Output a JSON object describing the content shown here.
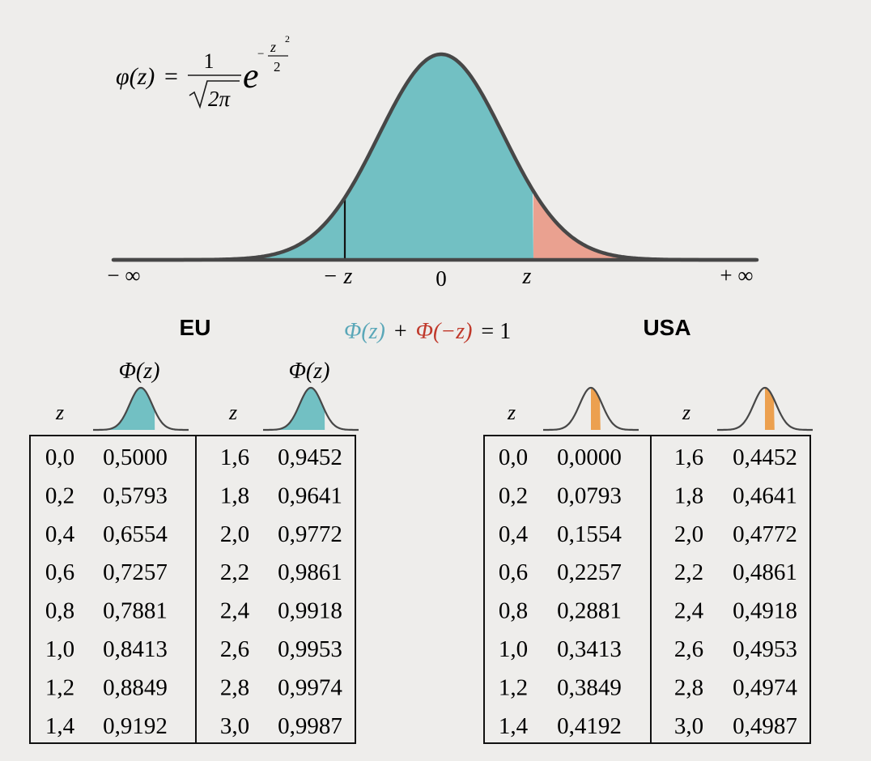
{
  "formula": {
    "lhs": "φ(z)",
    "equals": "=",
    "numerator": "1",
    "sqrt_content": "2π",
    "base": "e",
    "exp_sign": "−",
    "exp_num": "z",
    "exp_pow": "2",
    "exp_den": "2"
  },
  "axis": {
    "neg_inf": "− ∞",
    "neg_z": "− z",
    "zero": "0",
    "pos_z": "z",
    "pos_inf": "+ ∞"
  },
  "identity": {
    "part1": "Φ(z)",
    "plus": "+",
    "part2": "Φ(−z)",
    "rest": "= 1"
  },
  "colors": {
    "teal": "#72c0c3",
    "salmon": "#eaa190",
    "orange": "#eca04f",
    "curve": "#474747",
    "identity_teal": "#5aa7b8",
    "identity_red": "#c0392b"
  },
  "eu": {
    "title": "EU",
    "phi_label": "Φ(z)",
    "z_label": "z",
    "left_rows": [
      [
        "0,0",
        "0,5000"
      ],
      [
        "0,2",
        "0,5793"
      ],
      [
        "0,4",
        "0,6554"
      ],
      [
        "0,6",
        "0,7257"
      ],
      [
        "0,8",
        "0,7881"
      ],
      [
        "1,0",
        "0,8413"
      ],
      [
        "1,2",
        "0,8849"
      ],
      [
        "1,4",
        "0,9192"
      ]
    ],
    "right_rows": [
      [
        "1,6",
        "0,9452"
      ],
      [
        "1,8",
        "0,9641"
      ],
      [
        "2,0",
        "0,9772"
      ],
      [
        "2,2",
        "0,9861"
      ],
      [
        "2,4",
        "0,9918"
      ],
      [
        "2,6",
        "0,9953"
      ],
      [
        "2,8",
        "0,9974"
      ],
      [
        "3,0",
        "0,9987"
      ]
    ]
  },
  "usa": {
    "title": "USA",
    "z_label": "z",
    "left_rows": [
      [
        "0,0",
        "0,0000"
      ],
      [
        "0,2",
        "0,0793"
      ],
      [
        "0,4",
        "0,1554"
      ],
      [
        "0,6",
        "0,2257"
      ],
      [
        "0,8",
        "0,2881"
      ],
      [
        "1,0",
        "0,3413"
      ],
      [
        "1,2",
        "0,3849"
      ],
      [
        "1,4",
        "0,4192"
      ]
    ],
    "right_rows": [
      [
        "1,6",
        "0,4452"
      ],
      [
        "1,8",
        "0,4641"
      ],
      [
        "2,0",
        "0,4772"
      ],
      [
        "2,2",
        "0,4861"
      ],
      [
        "2,4",
        "0,4918"
      ],
      [
        "2,6",
        "0,4953"
      ],
      [
        "2,8",
        "0,4974"
      ],
      [
        "3,0",
        "0,4987"
      ]
    ]
  }
}
